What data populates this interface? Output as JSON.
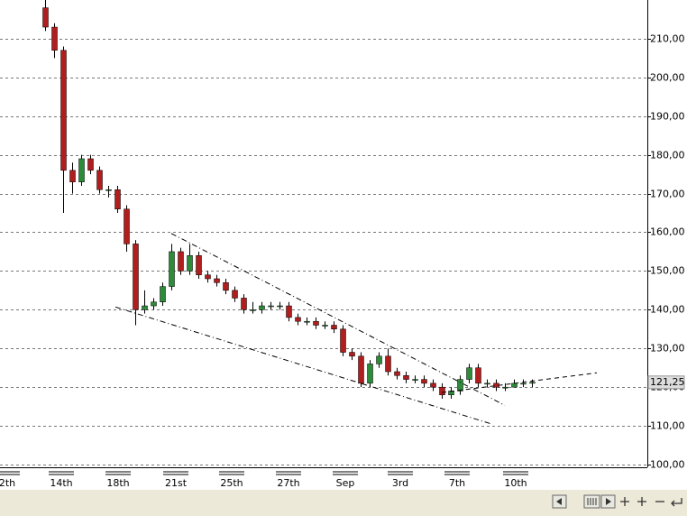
{
  "chart_data": {
    "type": "candlestick",
    "xlim": [
      -5,
      66.8
    ],
    "ylim": [
      99.3,
      220
    ],
    "yticks": [
      {
        "value": 100,
        "label": "100,00"
      },
      {
        "value": 110,
        "label": "110,00"
      },
      {
        "value": 120,
        "label": "120,00"
      },
      {
        "value": 130,
        "label": "130,00"
      },
      {
        "value": 140,
        "label": "140,00"
      },
      {
        "value": 150,
        "label": "150,00"
      },
      {
        "value": 160,
        "label": "160,00"
      },
      {
        "value": 170,
        "label": "170,00"
      },
      {
        "value": 180,
        "label": "180,00"
      },
      {
        "value": 190,
        "label": "190,00"
      },
      {
        "value": 200,
        "label": "200,00"
      },
      {
        "value": 210,
        "label": "210,00"
      }
    ],
    "xticks": [
      {
        "value": -4.2,
        "label": "2th"
      },
      {
        "value": 1.8,
        "label": "14th"
      },
      {
        "value": 8.1,
        "label": "18th"
      },
      {
        "value": 14.5,
        "label": "21st"
      },
      {
        "value": 20.7,
        "label": "25th"
      },
      {
        "value": 27,
        "label": "27th"
      },
      {
        "value": 33.3,
        "label": "Sep"
      },
      {
        "value": 39.4,
        "label": "3rd"
      },
      {
        "value": 45.7,
        "label": "7th"
      },
      {
        "value": 52.2,
        "label": "10th"
      }
    ],
    "grid": true,
    "up_color": "#2e8b3a",
    "down_color": "#b01e1e",
    "open": [
      218,
      213,
      207,
      176,
      173,
      179,
      176,
      171,
      171,
      166,
      157,
      140,
      141,
      142,
      146,
      155,
      150,
      154,
      149,
      148,
      147,
      145,
      143,
      140,
      140,
      141,
      141,
      141,
      138,
      137,
      137,
      136,
      136,
      135,
      129,
      128,
      121,
      126,
      128,
      124,
      123,
      122,
      122,
      121,
      120,
      118,
      119,
      122,
      125,
      121,
      121,
      120,
      120,
      121,
      121
    ],
    "high": [
      220,
      214,
      208,
      178,
      180,
      180,
      177,
      172,
      172,
      167,
      158,
      145,
      143,
      147,
      157,
      156,
      157,
      155,
      150,
      149,
      148,
      146,
      144,
      142,
      142,
      142,
      142,
      142,
      139,
      138,
      138,
      137,
      137,
      136,
      130,
      129,
      127,
      129,
      130,
      125,
      124,
      123,
      123,
      122,
      121,
      120,
      123,
      126,
      126,
      122,
      122,
      121,
      122,
      122,
      122
    ],
    "low": [
      212,
      205,
      165,
      170,
      172,
      175,
      170,
      169,
      165,
      155,
      136,
      139,
      140,
      141,
      145,
      149,
      149,
      148,
      147,
      146,
      144,
      142,
      139,
      139,
      139,
      140,
      140,
      137,
      136,
      136,
      135,
      135,
      134,
      128,
      127,
      120,
      120,
      125,
      123,
      122,
      121,
      121,
      120,
      119,
      117,
      117,
      118,
      121,
      120,
      120,
      119,
      119,
      120,
      120,
      120
    ],
    "close": [
      213,
      207,
      176,
      173,
      179,
      176,
      171,
      171,
      166,
      157,
      140,
      141,
      142,
      146,
      155,
      150,
      154,
      149,
      148,
      147,
      145,
      143,
      140,
      140,
      141,
      141,
      141,
      138,
      137,
      137,
      136,
      136,
      135,
      129,
      128,
      121,
      126,
      128,
      124,
      123,
      122,
      122,
      121,
      120,
      118,
      119,
      122,
      125,
      121,
      121,
      120,
      120,
      121,
      121,
      121.25
    ],
    "trend_lines": [
      {
        "x": [
          14,
          51
        ],
        "y": [
          159.7,
          115.3
        ],
        "style": "dashdot"
      },
      {
        "x": [
          7.8,
          49.5
        ],
        "y": [
          140.7,
          110.5
        ],
        "style": "dashdot"
      },
      {
        "x": [
          44,
          61.2
        ],
        "y": [
          118.6,
          123.7
        ],
        "style": "dashed"
      }
    ],
    "last_price": {
      "value": 121.25,
      "label": "121,25"
    }
  }
}
